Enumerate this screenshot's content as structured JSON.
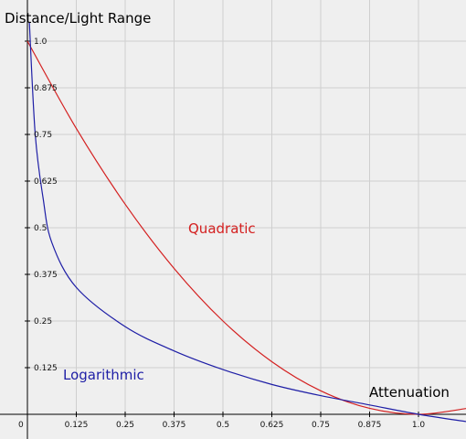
{
  "chart_data": {
    "type": "line",
    "title": "",
    "ylabel": "Distance/Light Range",
    "xlabel": "Attenuation",
    "xlim": [
      0,
      1.125
    ],
    "ylim": [
      0,
      1.0
    ],
    "grid": true,
    "x_ticks": [
      0,
      0.125,
      0.25,
      0.375,
      0.5,
      0.625,
      0.75,
      0.875,
      1.0
    ],
    "x_tick_labels": [
      "0",
      "0.125",
      "0.25",
      "0.375",
      "0.5",
      "0.625",
      "0.75",
      "0.875",
      "1.0"
    ],
    "y_ticks": [
      0.125,
      0.25,
      0.375,
      0.5,
      0.625,
      0.75,
      0.875,
      1.0
    ],
    "y_tick_labels": [
      "0.125",
      "0.25",
      "0.375",
      "0.5",
      "0.625",
      "0.75",
      "0.875",
      "1.0"
    ],
    "series": [
      {
        "name": "Quadratic",
        "color": "#d42020",
        "x": [
          0,
          0.125,
          0.25,
          0.375,
          0.5,
          0.625,
          0.75,
          0.875,
          1.0,
          1.125
        ],
        "y": [
          1.0,
          0.766,
          0.563,
          0.391,
          0.25,
          0.141,
          0.063,
          0.016,
          0.0,
          0.016
        ]
      },
      {
        "name": "Logarithmic",
        "color": "#1e1ea6",
        "x": [
          0.005,
          0.02,
          0.04,
          0.0625,
          0.125,
          0.25,
          0.375,
          0.5,
          0.625,
          0.75,
          0.875,
          1.0,
          1.125
        ],
        "y": [
          1.05,
          0.75,
          0.58,
          0.46,
          0.34,
          0.235,
          0.17,
          0.12,
          0.08,
          0.05,
          0.025,
          0.0,
          -0.02
        ]
      }
    ]
  }
}
